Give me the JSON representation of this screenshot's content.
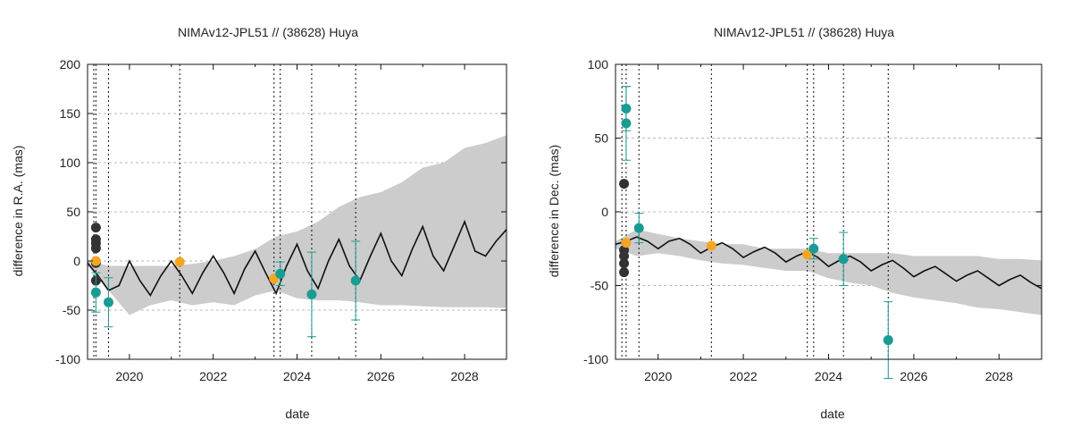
{
  "chart_data": [
    {
      "type": "line",
      "title": "NIMAv12-JPL51 // (38628) Huya",
      "xlabel": "date",
      "ylabel": "difference in R.A. (mas)",
      "xlim": [
        2019.0,
        2029.0
      ],
      "ylim": [
        -100,
        200
      ],
      "x_ticks": [
        2020,
        2022,
        2024,
        2026,
        2028
      ],
      "x_tick_labels": [
        "2020",
        "2022",
        "2024",
        "2026",
        "2028"
      ],
      "y_ticks": [
        -100,
        -50,
        0,
        50,
        100,
        150,
        200
      ],
      "y_tick_labels": [
        "-100",
        "-50",
        "0",
        "50",
        "100",
        "150",
        "200"
      ],
      "grid": true,
      "vertical_dotted_lines": [
        2019.15,
        2019.2,
        2019.5,
        2021.2,
        2023.45,
        2023.6,
        2024.35,
        2025.4
      ],
      "uncertainty_band": {
        "x": [
          2019.0,
          2019.5,
          2020.0,
          2020.5,
          2021.0,
          2021.5,
          2022.0,
          2022.5,
          2023.0,
          2023.5,
          2024.0,
          2024.5,
          2025.0,
          2025.5,
          2026.0,
          2026.5,
          2027.0,
          2027.5,
          2028.0,
          2028.5,
          2029.0
        ],
        "upper": [
          0,
          -5,
          -5,
          -5,
          -5,
          -3,
          0,
          5,
          12,
          25,
          30,
          40,
          55,
          65,
          70,
          80,
          95,
          100,
          115,
          120,
          128
        ],
        "lower": [
          -5,
          -30,
          -55,
          -45,
          -40,
          -45,
          -42,
          -45,
          -35,
          -30,
          -38,
          -40,
          -40,
          -42,
          -45,
          -45,
          -46,
          -47,
          -47,
          -47,
          -48
        ]
      },
      "ephemeris_line": {
        "x": [
          2019.0,
          2019.25,
          2019.5,
          2019.75,
          2020.0,
          2020.25,
          2020.5,
          2020.75,
          2021.0,
          2021.25,
          2021.5,
          2021.75,
          2022.0,
          2022.25,
          2022.5,
          2022.75,
          2023.0,
          2023.25,
          2023.5,
          2023.75,
          2024.0,
          2024.25,
          2024.5,
          2024.75,
          2025.0,
          2025.25,
          2025.5,
          2025.75,
          2026.0,
          2026.25,
          2026.5,
          2026.75,
          2027.0,
          2027.25,
          2027.5,
          2027.75,
          2028.0,
          2028.25,
          2028.5,
          2028.75,
          2029.0
        ],
        "y": [
          -2,
          -15,
          -30,
          -25,
          0,
          -20,
          -35,
          -15,
          0,
          -15,
          -33,
          -12,
          5,
          -12,
          -33,
          -8,
          10,
          -12,
          -33,
          -5,
          17,
          -10,
          -28,
          0,
          22,
          -5,
          -20,
          5,
          28,
          0,
          -15,
          12,
          35,
          5,
          -10,
          15,
          40,
          10,
          5,
          20,
          32
        ]
      },
      "observations": [
        {
          "x": 2019.2,
          "y": 34,
          "err": 0,
          "color": "#333333"
        },
        {
          "x": 2019.2,
          "y": 22,
          "err": 0,
          "color": "#333333"
        },
        {
          "x": 2019.2,
          "y": 18,
          "err": 0,
          "color": "#333333"
        },
        {
          "x": 2019.2,
          "y": 13,
          "err": 0,
          "color": "#333333"
        },
        {
          "x": 2019.2,
          "y": -2,
          "err": 0,
          "color": "#333333"
        },
        {
          "x": 2019.2,
          "y": -20,
          "err": 0,
          "color": "#333333"
        },
        {
          "x": 2019.2,
          "y": 0,
          "err": 0,
          "color": "#f5a623"
        },
        {
          "x": 2019.2,
          "y": -32,
          "err": 20,
          "color": "#1a9c94"
        },
        {
          "x": 2019.5,
          "y": -42,
          "err": 25,
          "color": "#1a9c94"
        },
        {
          "x": 2021.2,
          "y": -1,
          "err": 0,
          "color": "#f5a623"
        },
        {
          "x": 2023.45,
          "y": -18,
          "err": 0,
          "color": "#f5a623"
        },
        {
          "x": 2023.6,
          "y": -13,
          "err": 12,
          "color": "#1a9c94"
        },
        {
          "x": 2024.35,
          "y": -34,
          "err": 43,
          "color": "#1a9c94"
        },
        {
          "x": 2025.4,
          "y": -20,
          "err": 40,
          "color": "#1a9c94"
        }
      ]
    },
    {
      "type": "line",
      "title": "NIMAv12-JPL51 // (38628) Huya",
      "xlabel": "date",
      "ylabel": "difference in Dec. (mas)",
      "xlim": [
        2019.0,
        2029.0
      ],
      "ylim": [
        -100,
        100
      ],
      "x_ticks": [
        2020,
        2022,
        2024,
        2026,
        2028
      ],
      "x_tick_labels": [
        "2020",
        "2022",
        "2024",
        "2026",
        "2028"
      ],
      "y_ticks": [
        -100,
        -50,
        0,
        50,
        100
      ],
      "y_tick_labels": [
        "-100",
        "-50",
        "0",
        "50",
        "100"
      ],
      "grid": true,
      "vertical_dotted_lines": [
        2019.15,
        2019.25,
        2019.55,
        2021.25,
        2023.5,
        2023.65,
        2024.35,
        2025.4
      ],
      "uncertainty_band": {
        "x": [
          2019.0,
          2019.5,
          2020.0,
          2020.5,
          2021.0,
          2021.5,
          2022.0,
          2022.5,
          2023.0,
          2023.5,
          2024.0,
          2024.5,
          2025.0,
          2025.5,
          2026.0,
          2026.5,
          2027.0,
          2027.5,
          2028.0,
          2028.5,
          2029.0
        ],
        "upper": [
          -20,
          -12,
          -15,
          -18,
          -20,
          -22,
          -22,
          -25,
          -25,
          -25,
          -28,
          -28,
          -28,
          -28,
          -30,
          -30,
          -30,
          -30,
          -32,
          -32,
          -33
        ],
        "lower": [
          -25,
          -30,
          -28,
          -30,
          -33,
          -35,
          -36,
          -38,
          -40,
          -40,
          -45,
          -48,
          -50,
          -55,
          -58,
          -60,
          -62,
          -65,
          -66,
          -68,
          -70
        ]
      },
      "ephemeris_line": {
        "x": [
          2019.0,
          2019.25,
          2019.5,
          2019.75,
          2020.0,
          2020.25,
          2020.5,
          2020.75,
          2021.0,
          2021.25,
          2021.5,
          2021.75,
          2022.0,
          2022.25,
          2022.5,
          2022.75,
          2023.0,
          2023.25,
          2023.5,
          2023.75,
          2024.0,
          2024.25,
          2024.5,
          2024.75,
          2025.0,
          2025.25,
          2025.5,
          2025.75,
          2026.0,
          2026.25,
          2026.5,
          2026.75,
          2027.0,
          2027.25,
          2027.5,
          2027.75,
          2028.0,
          2028.25,
          2028.5,
          2028.75,
          2029.0
        ],
        "y": [
          -22,
          -20,
          -17,
          -20,
          -25,
          -20,
          -18,
          -22,
          -28,
          -24,
          -21,
          -25,
          -31,
          -27,
          -24,
          -28,
          -34,
          -30,
          -27,
          -31,
          -37,
          -33,
          -30,
          -34,
          -40,
          -36,
          -33,
          -38,
          -44,
          -40,
          -37,
          -42,
          -47,
          -43,
          -40,
          -45,
          -50,
          -46,
          -43,
          -48,
          -52
        ]
      },
      "observations": [
        {
          "x": 2019.2,
          "y": 19,
          "err": 0,
          "color": "#333333"
        },
        {
          "x": 2019.2,
          "y": -26,
          "err": 0,
          "color": "#333333"
        },
        {
          "x": 2019.2,
          "y": -30,
          "err": 0,
          "color": "#333333"
        },
        {
          "x": 2019.2,
          "y": -35,
          "err": 0,
          "color": "#333333"
        },
        {
          "x": 2019.2,
          "y": -41,
          "err": 0,
          "color": "#333333"
        },
        {
          "x": 2019.25,
          "y": 70,
          "err": 15,
          "color": "#1a9c94"
        },
        {
          "x": 2019.25,
          "y": 60,
          "err": 25,
          "color": "#1a9c94"
        },
        {
          "x": 2019.25,
          "y": -21,
          "err": 0,
          "color": "#f5a623"
        },
        {
          "x": 2019.55,
          "y": -11,
          "err": 10,
          "color": "#1a9c94"
        },
        {
          "x": 2021.25,
          "y": -23,
          "err": 0,
          "color": "#f5a623"
        },
        {
          "x": 2023.5,
          "y": -29,
          "err": 0,
          "color": "#f5a623"
        },
        {
          "x": 2023.65,
          "y": -25,
          "err": 7,
          "color": "#1a9c94"
        },
        {
          "x": 2024.35,
          "y": -32,
          "err": 18,
          "color": "#1a9c94"
        },
        {
          "x": 2025.4,
          "y": -87,
          "err": 26,
          "color": "#1a9c94"
        }
      ]
    }
  ]
}
